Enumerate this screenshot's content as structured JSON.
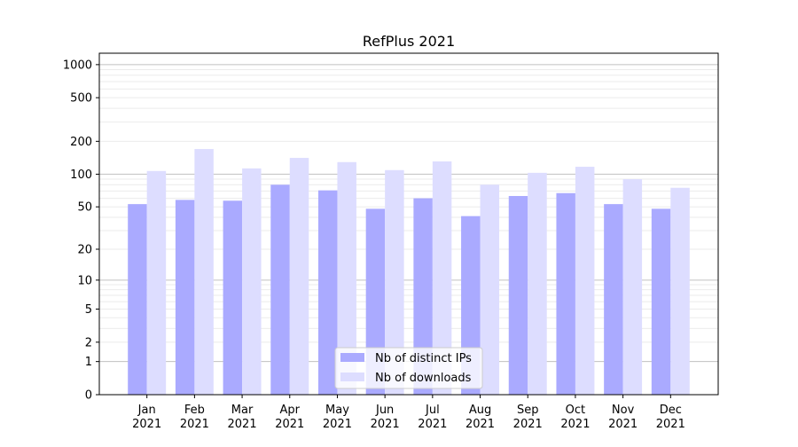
{
  "chart_data": {
    "type": "bar",
    "title": "RefPlus 2021",
    "xlabel": "",
    "ylabel": "",
    "yscale": "log10(1+y)",
    "ylim": [
      0,
      1270
    ],
    "yticks": [
      0,
      1,
      2,
      5,
      10,
      20,
      50,
      100,
      200,
      500,
      1000
    ],
    "grid": true,
    "legend_position": "lower center",
    "categories": [
      "Jan\n2021",
      "Feb\n2021",
      "Mar\n2021",
      "Apr\n2021",
      "May\n2021",
      "Jun\n2021",
      "Jul\n2021",
      "Aug\n2021",
      "Sep\n2021",
      "Oct\n2021",
      "Nov\n2021",
      "Dec\n2021"
    ],
    "series": [
      {
        "name": "Nb of distinct IPs",
        "color": "#aaaaff",
        "values": [
          53,
          58,
          57,
          80,
          71,
          48,
          60,
          41,
          63,
          67,
          53,
          48
        ]
      },
      {
        "name": "Nb of downloads",
        "color": "#ddddff",
        "values": [
          107,
          170,
          113,
          141,
          129,
          109,
          131,
          80,
          103,
          117,
          90,
          75
        ]
      }
    ]
  }
}
